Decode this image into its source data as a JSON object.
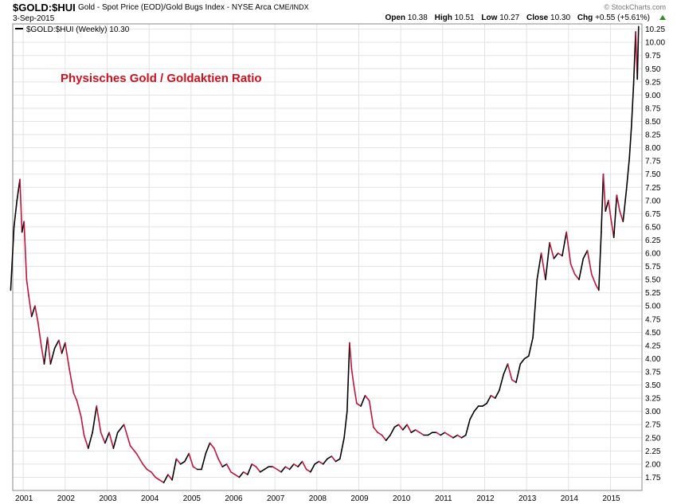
{
  "header": {
    "symbol": "$GOLD:$HUI",
    "description": "Gold - Spot Price (EOD)/Gold Bugs Index - NYSE Arca",
    "exchange": "CME/INDX",
    "brand": "© StockCharts.com",
    "date": "3-Sep-2015",
    "open_label": "Open",
    "open_value": "10.38",
    "high_label": "High",
    "high_value": "10.51",
    "low_label": "Low",
    "low_value": "10.27",
    "close_label": "Close",
    "close_value": "10.30",
    "chg_label": "Chg",
    "chg_value": "+0.55 (+5.61%)"
  },
  "colors": {
    "line_down": "#c0143c",
    "line_up": "#000000",
    "grid": "#e3e3e3",
    "title": "#d0101e",
    "arrow": "#2e8b2e"
  },
  "chart_data": {
    "type": "line",
    "title": "Physisches Gold / Goldaktien  Ratio",
    "legend": "$GOLD:$HUI (Weekly) 10.30",
    "xlabel": "",
    "ylabel": "",
    "ylim": [
      1.5,
      10.35
    ],
    "xlim": [
      2000.75,
      2015.75
    ],
    "x_ticks": [
      "2001",
      "2002",
      "2003",
      "2004",
      "2005",
      "2006",
      "2007",
      "2008",
      "2009",
      "2010",
      "2011",
      "2012",
      "2013",
      "2014",
      "2015"
    ],
    "y_ticks": [
      "1.75",
      "2.00",
      "2.25",
      "2.50",
      "2.75",
      "3.00",
      "3.25",
      "3.50",
      "3.75",
      "4.00",
      "4.25",
      "4.50",
      "4.75",
      "5.00",
      "5.25",
      "5.50",
      "5.75",
      "6.00",
      "6.25",
      "6.50",
      "6.75",
      "7.00",
      "7.25",
      "7.50",
      "7.75",
      "8.00",
      "8.25",
      "8.50",
      "8.75",
      "9.00",
      "9.25",
      "9.50",
      "9.75",
      "10.00",
      "10.25"
    ],
    "series": [
      {
        "name": "$GOLD:$HUI (Weekly)",
        "x": [
          2000.7,
          2000.78,
          2000.85,
          2000.92,
          2000.97,
          2001.02,
          2001.08,
          2001.13,
          2001.2,
          2001.28,
          2001.35,
          2001.42,
          2001.5,
          2001.58,
          2001.65,
          2001.75,
          2001.85,
          2001.92,
          2002.0,
          2002.1,
          2002.2,
          2002.28,
          2002.38,
          2002.45,
          2002.55,
          2002.65,
          2002.75,
          2002.85,
          2002.95,
          2003.05,
          2003.15,
          2003.25,
          2003.4,
          2003.55,
          2003.7,
          2003.85,
          2003.95,
          2004.05,
          2004.15,
          2004.25,
          2004.35,
          2004.45,
          2004.55,
          2004.65,
          2004.75,
          2004.85,
          2004.95,
          2005.05,
          2005.15,
          2005.25,
          2005.35,
          2005.45,
          2005.55,
          2005.65,
          2005.75,
          2005.85,
          2005.95,
          2006.05,
          2006.15,
          2006.25,
          2006.35,
          2006.45,
          2006.55,
          2006.65,
          2006.75,
          2006.85,
          2006.95,
          2007.05,
          2007.15,
          2007.25,
          2007.35,
          2007.45,
          2007.55,
          2007.65,
          2007.75,
          2007.85,
          2007.95,
          2008.05,
          2008.15,
          2008.25,
          2008.35,
          2008.45,
          2008.55,
          2008.65,
          2008.72,
          2008.78,
          2008.83,
          2008.88,
          2008.95,
          2009.05,
          2009.15,
          2009.25,
          2009.35,
          2009.45,
          2009.55,
          2009.65,
          2009.75,
          2009.85,
          2009.95,
          2010.05,
          2010.15,
          2010.25,
          2010.35,
          2010.45,
          2010.55,
          2010.65,
          2010.75,
          2010.85,
          2010.95,
          2011.05,
          2011.15,
          2011.25,
          2011.35,
          2011.45,
          2011.55,
          2011.65,
          2011.75,
          2011.85,
          2011.95,
          2012.05,
          2012.15,
          2012.25,
          2012.35,
          2012.45,
          2012.55,
          2012.65,
          2012.75,
          2012.85,
          2012.95,
          2013.05,
          2013.15,
          2013.25,
          2013.35,
          2013.45,
          2013.55,
          2013.65,
          2013.75,
          2013.85,
          2013.95,
          2014.05,
          2014.15,
          2014.25,
          2014.35,
          2014.45,
          2014.55,
          2014.65,
          2014.72,
          2014.78,
          2014.83,
          2014.88,
          2014.95,
          2015.02,
          2015.08,
          2015.15,
          2015.22,
          2015.3,
          2015.38,
          2015.45,
          2015.5,
          2015.55,
          2015.6,
          2015.64,
          2015.67
        ],
        "y": [
          5.3,
          6.5,
          7.0,
          7.4,
          6.4,
          6.6,
          5.5,
          5.2,
          4.8,
          5.0,
          4.7,
          4.3,
          3.9,
          4.4,
          3.9,
          4.2,
          4.35,
          4.1,
          4.3,
          3.8,
          3.35,
          3.2,
          2.9,
          2.55,
          2.3,
          2.6,
          3.1,
          2.6,
          2.4,
          2.6,
          2.3,
          2.6,
          2.75,
          2.35,
          2.2,
          2.0,
          1.9,
          1.85,
          1.75,
          1.7,
          1.65,
          1.8,
          1.7,
          2.1,
          2.0,
          2.05,
          2.2,
          1.95,
          1.9,
          1.9,
          2.2,
          2.4,
          2.3,
          2.1,
          1.95,
          2.0,
          1.85,
          1.8,
          1.75,
          1.85,
          1.8,
          2.0,
          1.95,
          1.85,
          1.9,
          1.95,
          1.95,
          1.9,
          1.85,
          1.95,
          1.9,
          2.0,
          1.95,
          2.05,
          1.9,
          1.85,
          2.0,
          2.05,
          2.0,
          2.1,
          2.15,
          2.05,
          2.1,
          2.5,
          3.0,
          4.3,
          3.8,
          3.5,
          3.15,
          3.1,
          3.3,
          3.2,
          2.7,
          2.6,
          2.55,
          2.45,
          2.55,
          2.7,
          2.75,
          2.65,
          2.75,
          2.6,
          2.65,
          2.6,
          2.55,
          2.55,
          2.6,
          2.6,
          2.55,
          2.6,
          2.55,
          2.5,
          2.55,
          2.5,
          2.55,
          2.85,
          3.0,
          3.1,
          3.1,
          3.15,
          3.3,
          3.25,
          3.4,
          3.7,
          3.9,
          3.6,
          3.55,
          3.9,
          4.0,
          4.05,
          4.4,
          5.5,
          6.0,
          5.5,
          6.2,
          5.9,
          6.0,
          5.95,
          6.4,
          5.8,
          5.6,
          5.5,
          5.9,
          6.05,
          5.6,
          5.4,
          5.3,
          6.4,
          7.5,
          6.8,
          7.0,
          6.6,
          6.3,
          7.1,
          6.8,
          6.6,
          7.2,
          7.8,
          8.4,
          9.2,
          10.2,
          9.3,
          10.3
        ]
      }
    ]
  }
}
